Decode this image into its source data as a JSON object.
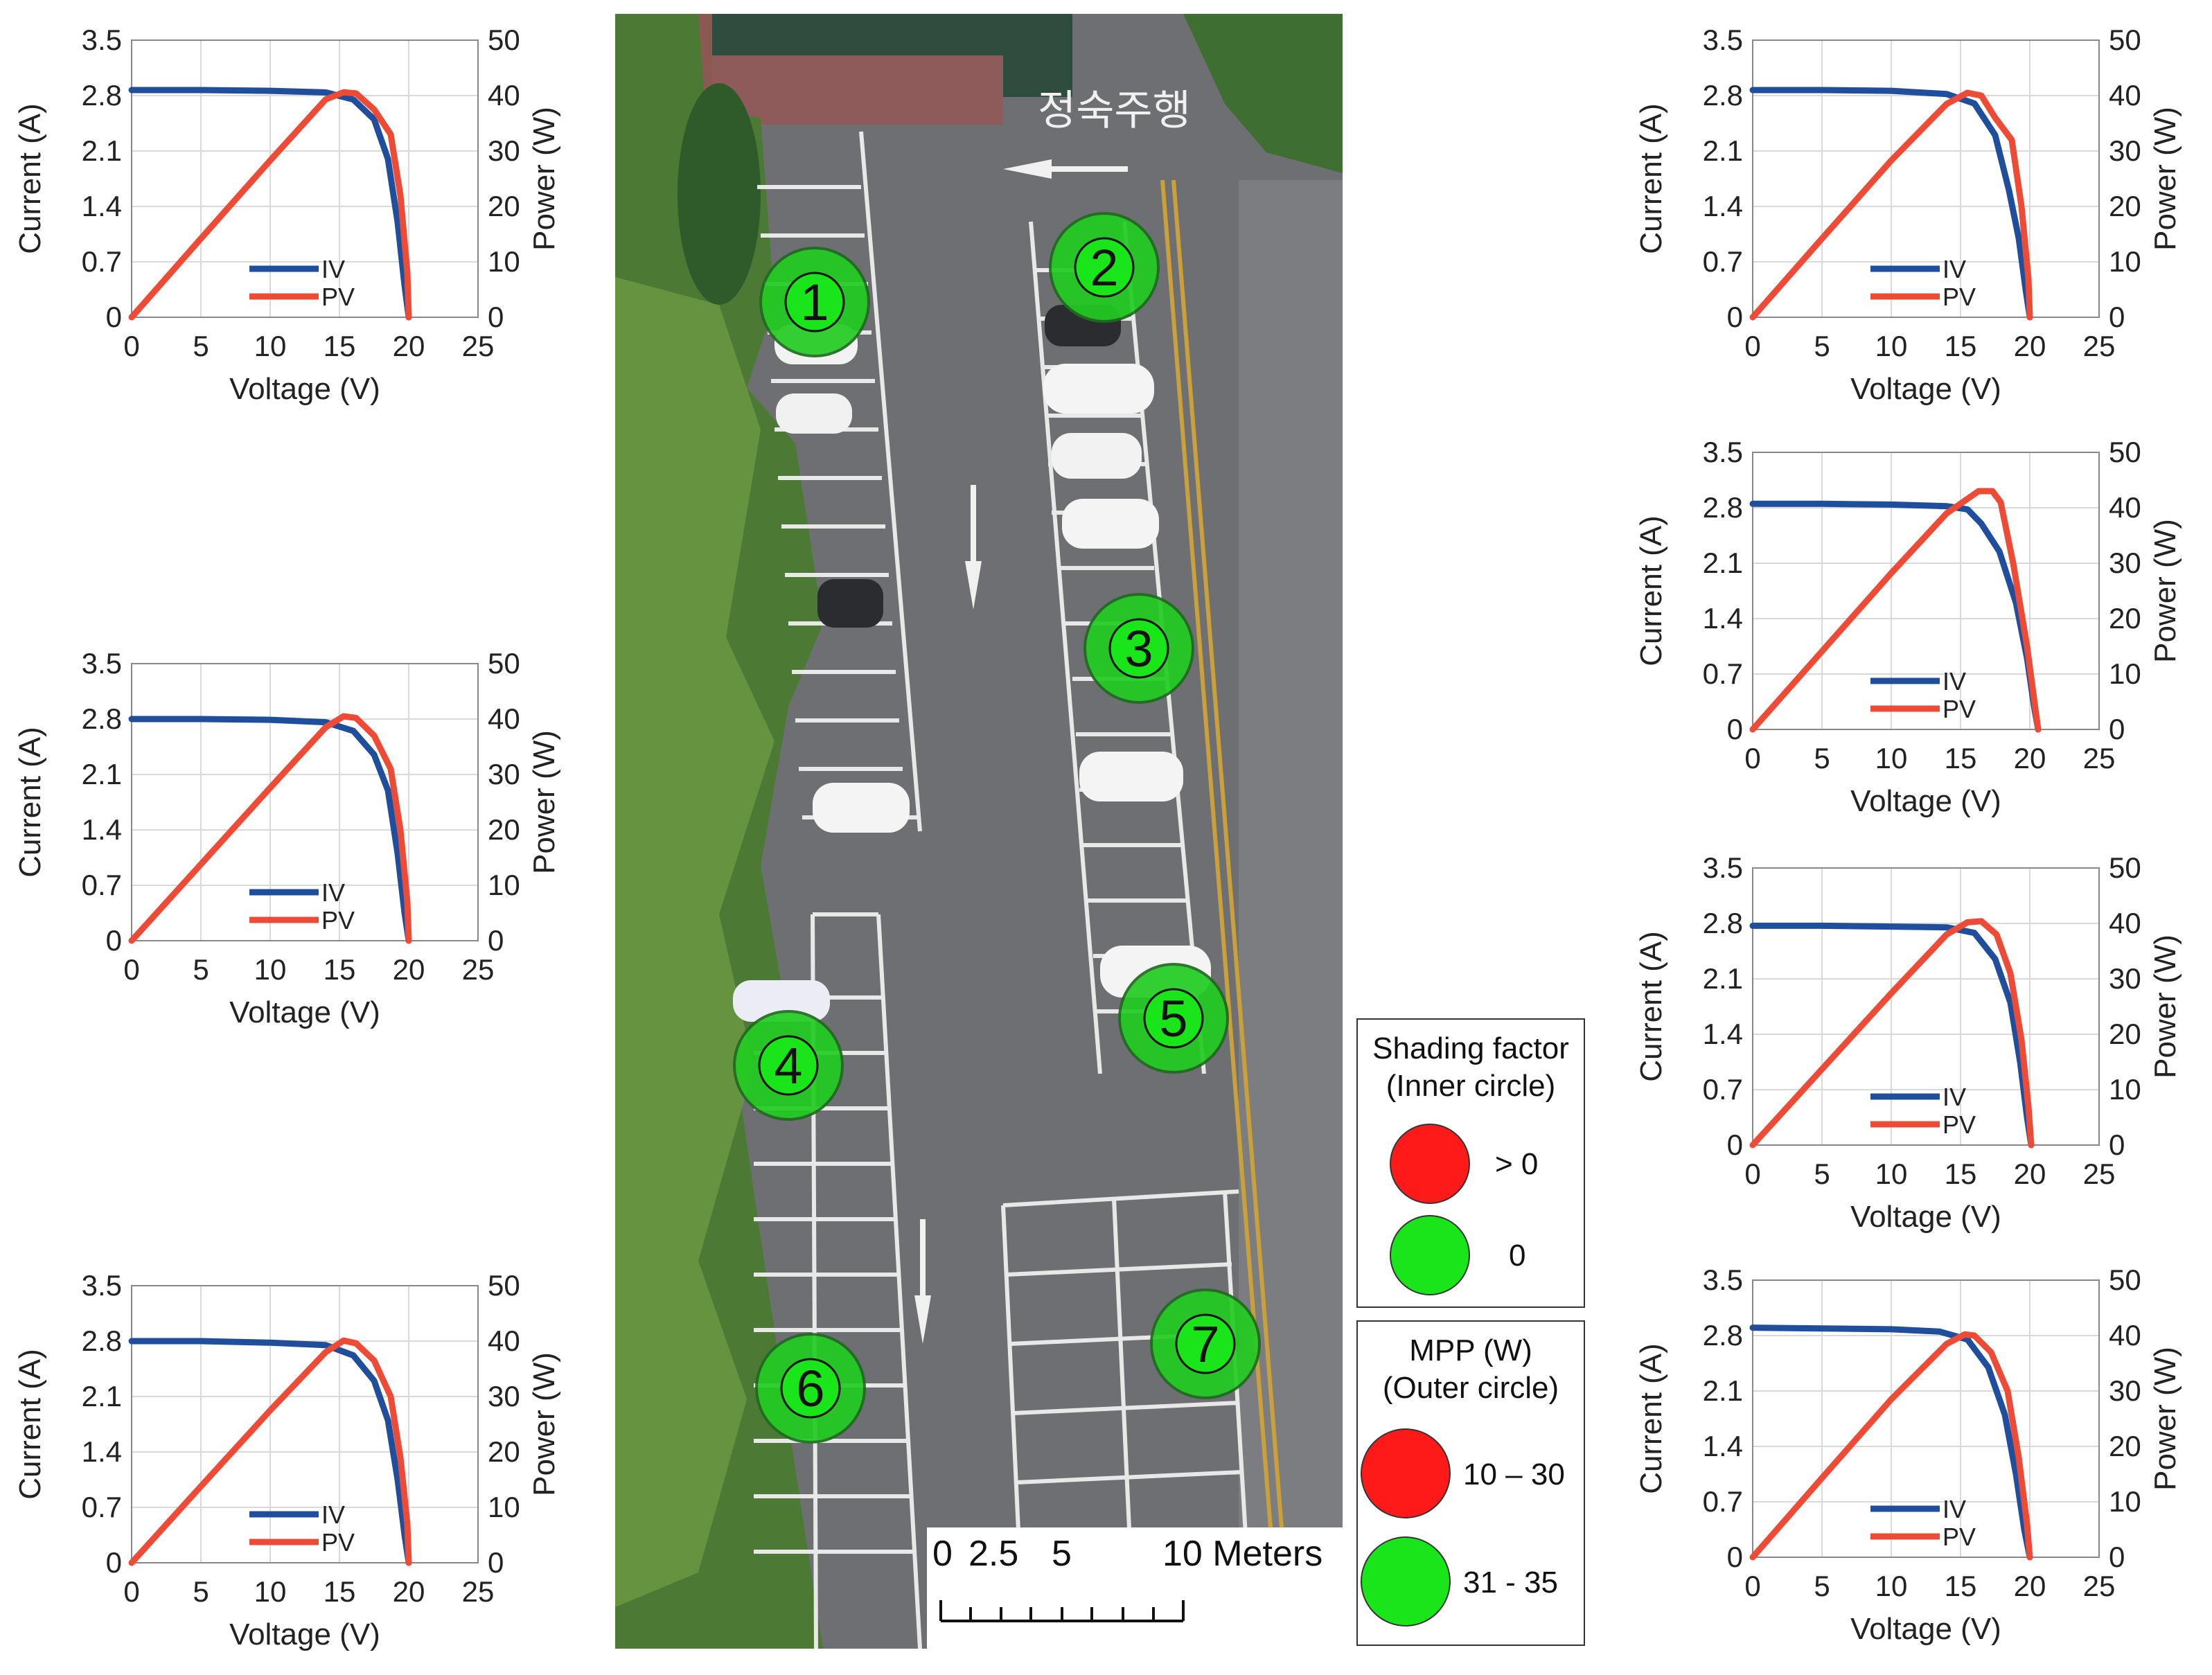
{
  "colors": {
    "iv": "#1f4e9c",
    "pv": "#ee4b36",
    "red": "#ff1a1a",
    "green": "#19e619",
    "spot_fill": "#22cc22",
    "asphalt": "#6f6f72",
    "tree": "#4f7d3a"
  },
  "chart_data": [
    {
      "id": "chart-1",
      "type": "line",
      "panel": "left-top",
      "xlabel": "Voltage (V)",
      "ylabel": "Current (A)",
      "y2label": "Power (W)",
      "xlim": [
        0,
        25
      ],
      "ylim": [
        0,
        3.5
      ],
      "y2lim": [
        0,
        50
      ],
      "xticks": [
        "0",
        "5",
        "10",
        "15",
        "20",
        "25"
      ],
      "yticks": [
        "0",
        "0.7",
        "1.4",
        "2.1",
        "2.8",
        "3.5"
      ],
      "y2ticks": [
        "0",
        "10",
        "20",
        "30",
        "40",
        "50"
      ],
      "legend": [
        "IV",
        "PV"
      ],
      "series": [
        {
          "name": "IV",
          "axis": "left",
          "x": [
            0,
            5,
            10,
            14,
            16,
            17.5,
            18.5,
            19.2,
            19.7,
            20.0
          ],
          "y": [
            2.87,
            2.87,
            2.86,
            2.84,
            2.75,
            2.5,
            2.0,
            1.2,
            0.4,
            0
          ]
        },
        {
          "name": "PV",
          "axis": "right",
          "x": [
            0,
            5,
            10,
            14,
            15.3,
            16.2,
            17.5,
            18.7,
            19.4,
            19.9,
            20.0
          ],
          "y": [
            0,
            14.2,
            28.3,
            39.3,
            40.6,
            40.4,
            37.5,
            33,
            22,
            8,
            0
          ]
        }
      ]
    },
    {
      "id": "chart-2",
      "type": "line",
      "panel": "left-middle",
      "xlabel": "Voltage (V)",
      "ylabel": "Current (A)",
      "y2label": "Power (W)",
      "xlim": [
        0,
        25
      ],
      "ylim": [
        0,
        3.5
      ],
      "y2lim": [
        0,
        50
      ],
      "xticks": [
        "0",
        "5",
        "10",
        "15",
        "20",
        "25"
      ],
      "yticks": [
        "0",
        "0.7",
        "1.4",
        "2.1",
        "2.8",
        "3.5"
      ],
      "y2ticks": [
        "0",
        "10",
        "20",
        "30",
        "40",
        "50"
      ],
      "legend": [
        "IV",
        "PV"
      ],
      "series": [
        {
          "name": "IV",
          "axis": "left",
          "x": [
            0,
            5,
            10,
            14,
            16,
            17.5,
            18.5,
            19.2,
            19.7,
            20.0
          ],
          "y": [
            2.8,
            2.8,
            2.79,
            2.76,
            2.65,
            2.35,
            1.9,
            1.1,
            0.35,
            0
          ]
        },
        {
          "name": "PV",
          "axis": "right",
          "x": [
            0,
            5,
            10,
            14,
            15.3,
            16.2,
            17.5,
            18.7,
            19.4,
            19.9,
            20.0
          ],
          "y": [
            0,
            13.8,
            27.6,
            38.5,
            40.5,
            40.2,
            37,
            31,
            20,
            7,
            0
          ]
        }
      ]
    },
    {
      "id": "chart-3",
      "type": "line",
      "panel": "left-bottom",
      "xlabel": "Voltage (V)",
      "ylabel": "Current (A)",
      "y2label": "Power (W)",
      "xlim": [
        0,
        25
      ],
      "ylim": [
        0,
        3.5
      ],
      "y2lim": [
        0,
        50
      ],
      "xticks": [
        "0",
        "5",
        "10",
        "15",
        "20",
        "25"
      ],
      "yticks": [
        "0",
        "0.7",
        "1.4",
        "2.1",
        "2.8",
        "3.5"
      ],
      "y2ticks": [
        "0",
        "10",
        "20",
        "30",
        "40",
        "50"
      ],
      "legend": [
        "IV",
        "PV"
      ],
      "series": [
        {
          "name": "IV",
          "axis": "left",
          "x": [
            0,
            5,
            10,
            14,
            16,
            17.5,
            18.5,
            19.2,
            19.7,
            20.0
          ],
          "y": [
            2.8,
            2.8,
            2.78,
            2.75,
            2.62,
            2.3,
            1.8,
            1.05,
            0.35,
            0
          ]
        },
        {
          "name": "PV",
          "axis": "right",
          "x": [
            0,
            5,
            10,
            14,
            15.3,
            16.2,
            17.5,
            18.7,
            19.4,
            19.9,
            20.0
          ],
          "y": [
            0,
            13.8,
            27.5,
            38,
            40.1,
            39.6,
            36.5,
            30,
            19,
            7,
            0
          ]
        }
      ]
    },
    {
      "id": "chart-4",
      "type": "line",
      "panel": "right-1",
      "xlabel": "Voltage (V)",
      "ylabel": "Current (A)",
      "y2label": "Power (W)",
      "xlim": [
        0,
        25
      ],
      "ylim": [
        0,
        3.5
      ],
      "y2lim": [
        0,
        50
      ],
      "xticks": [
        "0",
        "5",
        "10",
        "15",
        "20",
        "25"
      ],
      "yticks": [
        "0",
        "0.7",
        "1.4",
        "2.1",
        "2.8",
        "3.5"
      ],
      "y2ticks": [
        "0",
        "10",
        "20",
        "30",
        "40",
        "50"
      ],
      "legend": [
        "IV",
        "PV"
      ],
      "series": [
        {
          "name": "IV",
          "axis": "left",
          "x": [
            0,
            5,
            10,
            14,
            16,
            17.5,
            18.5,
            19.2,
            19.7,
            20.0
          ],
          "y": [
            2.87,
            2.87,
            2.86,
            2.82,
            2.7,
            2.3,
            1.6,
            1.0,
            0.35,
            0
          ]
        },
        {
          "name": "PV",
          "axis": "right",
          "x": [
            0,
            5,
            10,
            14,
            15.5,
            16.5,
            17.5,
            18.7,
            19.4,
            19.9,
            20.0
          ],
          "y": [
            0,
            14.2,
            28.3,
            38.5,
            40.5,
            40,
            36,
            32,
            20,
            7,
            0
          ]
        }
      ]
    },
    {
      "id": "chart-5",
      "type": "line",
      "panel": "right-2",
      "xlabel": "Voltage (V)",
      "ylabel": "Current (A)",
      "y2label": "Power (W)",
      "xlim": [
        0,
        25
      ],
      "ylim": [
        0,
        3.5
      ],
      "y2lim": [
        0,
        50
      ],
      "xticks": [
        "0",
        "5",
        "10",
        "15",
        "20",
        "25"
      ],
      "yticks": [
        "0",
        "0.7",
        "1.4",
        "2.1",
        "2.8",
        "3.5"
      ],
      "y2ticks": [
        "0",
        "10",
        "20",
        "30",
        "40",
        "50"
      ],
      "legend": [
        "IV",
        "PV"
      ],
      "series": [
        {
          "name": "IV",
          "axis": "left",
          "x": [
            0,
            5,
            10,
            14,
            15.5,
            16.5,
            17.8,
            19,
            19.8,
            20.3,
            20.6
          ],
          "y": [
            2.85,
            2.85,
            2.84,
            2.82,
            2.78,
            2.6,
            2.25,
            1.6,
            0.9,
            0.3,
            0
          ]
        },
        {
          "name": "PV",
          "axis": "right",
          "x": [
            0,
            5,
            10,
            14,
            15.5,
            16.3,
            17.3,
            17.9,
            18.8,
            19.8,
            20.6
          ],
          "y": [
            0,
            14.1,
            28.2,
            39,
            41.6,
            43,
            43,
            41,
            30,
            15,
            0
          ]
        }
      ]
    },
    {
      "id": "chart-6",
      "type": "line",
      "panel": "right-3",
      "xlabel": "Voltage (V)",
      "ylabel": "Current (A)",
      "y2label": "Power (W)",
      "xlim": [
        0,
        25
      ],
      "ylim": [
        0,
        3.5
      ],
      "y2lim": [
        0,
        50
      ],
      "xticks": [
        "0",
        "5",
        "10",
        "15",
        "20",
        "25"
      ],
      "yticks": [
        "0",
        "0.7",
        "1.4",
        "2.1",
        "2.8",
        "3.5"
      ],
      "y2ticks": [
        "0",
        "10",
        "20",
        "30",
        "40",
        "50"
      ],
      "legend": [
        "IV",
        "PV"
      ],
      "series": [
        {
          "name": "IV",
          "axis": "left",
          "x": [
            0,
            5,
            10,
            14,
            16,
            17.5,
            18.6,
            19.3,
            19.8,
            20.1
          ],
          "y": [
            2.77,
            2.77,
            2.76,
            2.75,
            2.68,
            2.35,
            1.8,
            1.05,
            0.35,
            0
          ]
        },
        {
          "name": "PV",
          "axis": "right",
          "x": [
            0,
            5,
            10,
            14,
            15.5,
            16.5,
            17.6,
            18.6,
            19.4,
            19.9,
            20.1
          ],
          "y": [
            0,
            13.7,
            27.4,
            38,
            40.2,
            40.4,
            38,
            31,
            19,
            7,
            0
          ]
        }
      ]
    },
    {
      "id": "chart-7",
      "type": "line",
      "panel": "right-4",
      "xlabel": "Voltage (V)",
      "ylabel": "Current (A)",
      "y2label": "Power (W)",
      "xlim": [
        0,
        25
      ],
      "ylim": [
        0,
        3.5
      ],
      "y2lim": [
        0,
        50
      ],
      "xticks": [
        "0",
        "5",
        "10",
        "15",
        "20",
        "25"
      ],
      "yticks": [
        "0",
        "0.7",
        "1.4",
        "2.1",
        "2.8",
        "3.5"
      ],
      "y2ticks": [
        "0",
        "10",
        "20",
        "30",
        "40",
        "50"
      ],
      "legend": [
        "IV",
        "PV"
      ],
      "series": [
        {
          "name": "IV",
          "axis": "left",
          "x": [
            0,
            5,
            10,
            13.5,
            15.5,
            17,
            18.2,
            19,
            19.6,
            20.0
          ],
          "y": [
            2.9,
            2.89,
            2.88,
            2.85,
            2.75,
            2.4,
            1.8,
            1.05,
            0.35,
            0
          ]
        },
        {
          "name": "PV",
          "axis": "right",
          "x": [
            0,
            5,
            10,
            14,
            15.3,
            16,
            17.2,
            18.4,
            19.2,
            19.8,
            20.0
          ],
          "y": [
            0,
            14.3,
            28.5,
            38.5,
            40.2,
            40,
            37,
            30,
            18,
            6,
            0
          ]
        }
      ]
    }
  ],
  "map": {
    "spots": [
      {
        "label": "1"
      },
      {
        "label": "2"
      },
      {
        "label": "3"
      },
      {
        "label": "4"
      },
      {
        "label": "5"
      },
      {
        "label": "6"
      },
      {
        "label": "7"
      }
    ],
    "road_text": "정숙주행",
    "scale_bar": {
      "labels": [
        "0",
        "2.5",
        "5",
        "10 Meters"
      ]
    }
  },
  "legend_shading": {
    "title_line1": "Shading factor",
    "title_line2": "(Inner circle)",
    "items": [
      {
        "label": "> 0",
        "color": "red"
      },
      {
        "label": "0",
        "color": "green"
      }
    ]
  },
  "legend_mpp": {
    "title_line1": "MPP (W)",
    "title_line2": "(Outer circle)",
    "items": [
      {
        "label": "10 – 30",
        "color": "red"
      },
      {
        "label": "31 - 35",
        "color": "green"
      }
    ]
  }
}
